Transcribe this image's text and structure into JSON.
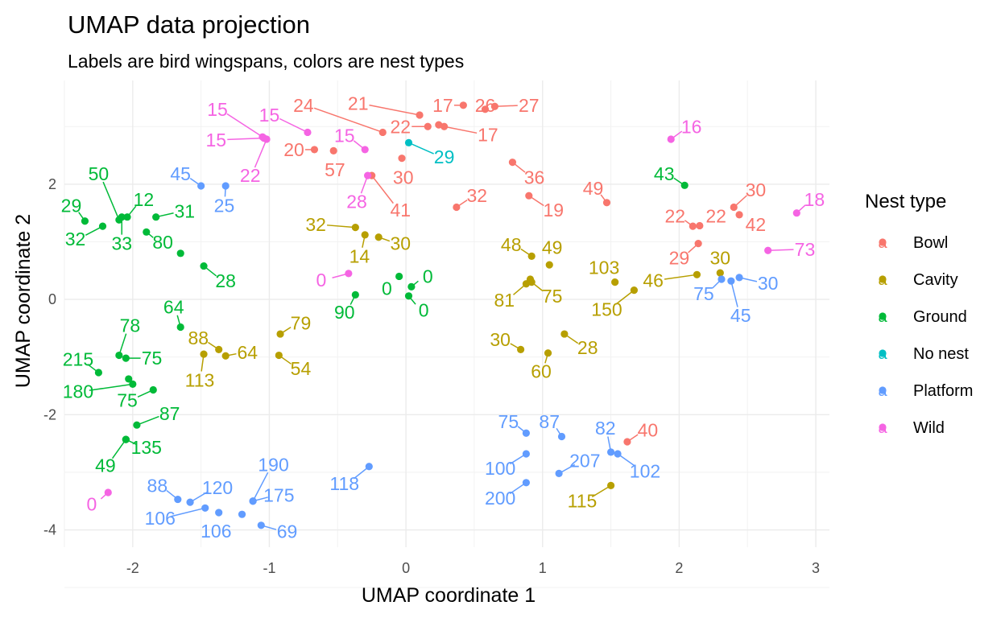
{
  "chart_data": {
    "type": "scatter",
    "title": "UMAP data projection",
    "subtitle": "Labels are bird wingspans, colors are nest types",
    "xlabel": "UMAP coordinate 1",
    "ylabel": "UMAP coordinate 2",
    "xlim": [
      -2.5,
      3.1
    ],
    "ylim": [
      -4.3,
      3.8
    ],
    "xticks": [
      -2,
      -1,
      0,
      1,
      2,
      3
    ],
    "xtick_labels": [
      "-2",
      "-1",
      "0",
      "1",
      "2",
      "3"
    ],
    "yticks": [
      -4,
      -2,
      0,
      2
    ],
    "ytick_labels": [
      "-4",
      "-2",
      "0",
      "2"
    ],
    "grid": true,
    "legend": {
      "title": "Nest type",
      "placement": "right",
      "key_glyph": "a",
      "entries": [
        {
          "name": "Bowl",
          "color": "#F8766D"
        },
        {
          "name": "Cavity",
          "color": "#B79F00"
        },
        {
          "name": "Ground",
          "color": "#00BA38"
        },
        {
          "name": "No nest",
          "color": "#00BFC4"
        },
        {
          "name": "Platform",
          "color": "#619CFF"
        },
        {
          "name": "Wild",
          "color": "#F564E3"
        }
      ]
    },
    "series": [
      {
        "name": "Bowl",
        "color": "#F8766D",
        "points": [
          {
            "x": 0.1,
            "y": 3.2,
            "label": "21",
            "lx": -0.35,
            "ly": 3.4
          },
          {
            "x": 0.42,
            "y": 3.37,
            "label": "17",
            "lx": 0.27,
            "ly": 3.37
          },
          {
            "x": 0.58,
            "y": 3.3,
            "label": "26",
            "lx": 0.58,
            "ly": 3.37
          },
          {
            "x": 0.65,
            "y": 3.35,
            "label": "27",
            "lx": 0.9,
            "ly": 3.37
          },
          {
            "x": -0.17,
            "y": 2.9,
            "label": "24",
            "lx": -0.75,
            "ly": 3.37
          },
          {
            "x": 0.16,
            "y": 3.0,
            "label": "22",
            "lx": -0.04,
            "ly": 3.0
          },
          {
            "x": 0.24,
            "y": 3.03,
            "label": "",
            "lx": null,
            "ly": null
          },
          {
            "x": 0.28,
            "y": 3.0,
            "label": "17",
            "lx": 0.6,
            "ly": 2.86
          },
          {
            "x": -0.67,
            "y": 2.6,
            "label": "20",
            "lx": -0.82,
            "ly": 2.6
          },
          {
            "x": -0.53,
            "y": 2.58,
            "label": "57",
            "lx": -0.52,
            "ly": 2.25
          },
          {
            "x": -0.03,
            "y": 2.45,
            "label": "30",
            "lx": -0.02,
            "ly": 2.12
          },
          {
            "x": -0.25,
            "y": 2.15,
            "label": "41",
            "lx": -0.04,
            "ly": 1.55
          },
          {
            "x": 0.78,
            "y": 2.38,
            "label": "36",
            "lx": 0.94,
            "ly": 2.12
          },
          {
            "x": 0.9,
            "y": 1.8,
            "label": "19",
            "lx": 1.08,
            "ly": 1.55
          },
          {
            "x": 0.37,
            "y": 1.6,
            "label": "32",
            "lx": 0.52,
            "ly": 1.8
          },
          {
            "x": 1.47,
            "y": 1.68,
            "label": "49",
            "lx": 1.37,
            "ly": 1.93
          },
          {
            "x": 2.1,
            "y": 1.27,
            "label": "22",
            "lx": 1.97,
            "ly": 1.45
          },
          {
            "x": 2.15,
            "y": 1.28,
            "label": "22",
            "lx": 2.27,
            "ly": 1.45
          },
          {
            "x": 2.4,
            "y": 1.6,
            "label": "30",
            "lx": 2.56,
            "ly": 1.9
          },
          {
            "x": 2.44,
            "y": 1.47,
            "label": "42",
            "lx": 2.56,
            "ly": 1.3
          },
          {
            "x": 2.14,
            "y": 0.97,
            "label": "29",
            "lx": 2.0,
            "ly": 0.72
          },
          {
            "x": 1.62,
            "y": -2.47,
            "label": "40",
            "lx": 1.77,
            "ly": -2.27
          }
        ]
      },
      {
        "name": "Cavity",
        "color": "#B79F00",
        "points": [
          {
            "x": -0.37,
            "y": 1.25,
            "label": "32",
            "lx": -0.66,
            "ly": 1.3
          },
          {
            "x": -0.3,
            "y": 1.12,
            "label": "14",
            "lx": -0.34,
            "ly": 0.75
          },
          {
            "x": -0.2,
            "y": 1.08,
            "label": "30",
            "lx": -0.04,
            "ly": 0.97
          },
          {
            "x": 0.92,
            "y": 0.75,
            "label": "48",
            "lx": 0.77,
            "ly": 0.95
          },
          {
            "x": 1.05,
            "y": 0.6,
            "label": "49",
            "lx": 1.07,
            "ly": 0.9
          },
          {
            "x": 0.91,
            "y": 0.35,
            "label": "",
            "lx": null,
            "ly": null
          },
          {
            "x": 0.88,
            "y": 0.27,
            "label": "81",
            "lx": 0.72,
            "ly": -0.01
          },
          {
            "x": 0.92,
            "y": 0.3,
            "label": "75",
            "lx": 1.07,
            "ly": 0.06
          },
          {
            "x": 1.53,
            "y": 0.3,
            "label": "103",
            "lx": 1.45,
            "ly": 0.55
          },
          {
            "x": 1.67,
            "y": 0.16,
            "label": "150",
            "lx": 1.47,
            "ly": -0.17
          },
          {
            "x": 2.13,
            "y": 0.43,
            "label": "46",
            "lx": 1.81,
            "ly": 0.33
          },
          {
            "x": 2.3,
            "y": 0.46,
            "label": "30",
            "lx": 2.3,
            "ly": 0.72
          },
          {
            "x": -0.92,
            "y": -0.6,
            "label": "79",
            "lx": -0.77,
            "ly": -0.41
          },
          {
            "x": -0.93,
            "y": -0.97,
            "label": "54",
            "lx": -0.77,
            "ly": -1.2
          },
          {
            "x": -1.37,
            "y": -0.87,
            "label": "88",
            "lx": -1.52,
            "ly": -0.67
          },
          {
            "x": -1.32,
            "y": -0.98,
            "label": "64",
            "lx": -1.16,
            "ly": -0.92
          },
          {
            "x": -1.48,
            "y": -0.95,
            "label": "113",
            "lx": -1.51,
            "ly": -1.4
          },
          {
            "x": 0.84,
            "y": -0.87,
            "label": "30",
            "lx": 0.69,
            "ly": -0.7
          },
          {
            "x": 1.04,
            "y": -0.93,
            "label": "60",
            "lx": 0.99,
            "ly": -1.25
          },
          {
            "x": 1.16,
            "y": -0.6,
            "label": "28",
            "lx": 1.33,
            "ly": -0.84
          },
          {
            "x": 1.5,
            "y": -3.23,
            "label": "115",
            "lx": 1.29,
            "ly": -3.5
          }
        ]
      },
      {
        "name": "Ground",
        "color": "#00BA38",
        "points": [
          {
            "x": -2.1,
            "y": 1.38,
            "label": "50",
            "lx": -2.25,
            "ly": 2.18
          },
          {
            "x": -2.04,
            "y": 1.43,
            "label": "12",
            "lx": -1.92,
            "ly": 1.73
          },
          {
            "x": -2.35,
            "y": 1.36,
            "label": "29",
            "lx": -2.45,
            "ly": 1.63
          },
          {
            "x": -2.22,
            "y": 1.27,
            "label": "32",
            "lx": -2.42,
            "ly": 1.05
          },
          {
            "x": -2.08,
            "y": 1.43,
            "label": "33",
            "lx": -2.08,
            "ly": 0.97
          },
          {
            "x": -1.83,
            "y": 1.43,
            "label": "31",
            "lx": -1.62,
            "ly": 1.53
          },
          {
            "x": -1.9,
            "y": 1.17,
            "label": "80",
            "lx": -1.78,
            "ly": 0.99
          },
          {
            "x": -1.65,
            "y": 0.8,
            "label": "",
            "lx": null,
            "ly": null
          },
          {
            "x": -1.48,
            "y": 0.58,
            "label": "28",
            "lx": -1.32,
            "ly": 0.32
          },
          {
            "x": 2.04,
            "y": 1.98,
            "label": "43",
            "lx": 1.89,
            "ly": 2.18
          },
          {
            "x": -0.05,
            "y": 0.4,
            "label": "0",
            "lx": -0.14,
            "ly": 0.19
          },
          {
            "x": 0.04,
            "y": 0.22,
            "label": "0",
            "lx": 0.16,
            "ly": 0.4
          },
          {
            "x": 0.02,
            "y": 0.06,
            "label": "0",
            "lx": 0.13,
            "ly": -0.19
          },
          {
            "x": -0.37,
            "y": 0.08,
            "label": "90",
            "lx": -0.45,
            "ly": -0.22
          },
          {
            "x": -1.65,
            "y": -0.48,
            "label": "64",
            "lx": -1.7,
            "ly": -0.13
          },
          {
            "x": -2.1,
            "y": -0.97,
            "label": "78",
            "lx": -2.02,
            "ly": -0.45
          },
          {
            "x": -2.05,
            "y": -1.02,
            "label": "75",
            "lx": -1.86,
            "ly": -1.02
          },
          {
            "x": -2.25,
            "y": -1.27,
            "label": "215",
            "lx": -2.4,
            "ly": -1.04
          },
          {
            "x": -2.03,
            "y": -1.38,
            "label": "",
            "lx": null,
            "ly": null
          },
          {
            "x": -2.0,
            "y": -1.47,
            "label": "180",
            "lx": -2.4,
            "ly": -1.6
          },
          {
            "x": -1.85,
            "y": -1.57,
            "label": "75",
            "lx": -2.04,
            "ly": -1.75
          },
          {
            "x": -1.97,
            "y": -2.18,
            "label": "87",
            "lx": -1.73,
            "ly": -1.98
          },
          {
            "x": -2.05,
            "y": -2.43,
            "label": "135",
            "lx": -1.9,
            "ly": -2.57
          },
          {
            "x": -2.05,
            "y": -2.43,
            "label": "49",
            "lx": -2.2,
            "ly": -2.88
          }
        ]
      },
      {
        "name": "No nest",
        "color": "#00BFC4",
        "points": [
          {
            "x": 0.02,
            "y": 2.72,
            "label": "29",
            "lx": 0.28,
            "ly": 2.47
          }
        ]
      },
      {
        "name": "Platform",
        "color": "#619CFF",
        "points": [
          {
            "x": -1.5,
            "y": 1.97,
            "label": "45",
            "lx": -1.65,
            "ly": 2.18
          },
          {
            "x": -1.32,
            "y": 1.97,
            "label": "25",
            "lx": -1.33,
            "ly": 1.63
          },
          {
            "x": 2.31,
            "y": 0.35,
            "label": "75",
            "lx": 2.18,
            "ly": 0.1
          },
          {
            "x": 2.38,
            "y": 0.32,
            "label": "45",
            "lx": 2.45,
            "ly": -0.28
          },
          {
            "x": 2.44,
            "y": 0.38,
            "label": "30",
            "lx": 2.65,
            "ly": 0.28
          },
          {
            "x": 0.88,
            "y": -2.32,
            "label": "75",
            "lx": 0.75,
            "ly": -2.12
          },
          {
            "x": 1.14,
            "y": -2.38,
            "label": "87",
            "lx": 1.05,
            "ly": -2.12
          },
          {
            "x": 0.88,
            "y": -2.68,
            "label": "100",
            "lx": 0.69,
            "ly": -2.93
          },
          {
            "x": 0.88,
            "y": -3.18,
            "label": "200",
            "lx": 0.69,
            "ly": -3.45
          },
          {
            "x": 1.12,
            "y": -3.02,
            "label": "207",
            "lx": 1.31,
            "ly": -2.8
          },
          {
            "x": 1.5,
            "y": -2.65,
            "label": "82",
            "lx": 1.46,
            "ly": -2.23
          },
          {
            "x": 1.55,
            "y": -2.68,
            "label": "102",
            "lx": 1.75,
            "ly": -2.98
          },
          {
            "x": -0.27,
            "y": -2.9,
            "label": "118",
            "lx": -0.45,
            "ly": -3.2
          },
          {
            "x": -1.67,
            "y": -3.47,
            "label": "88",
            "lx": -1.82,
            "ly": -3.23
          },
          {
            "x": -1.58,
            "y": -3.52,
            "label": "120",
            "lx": -1.38,
            "ly": -3.27
          },
          {
            "x": -1.47,
            "y": -3.62,
            "label": "106",
            "lx": -1.8,
            "ly": -3.8
          },
          {
            "x": -1.37,
            "y": -3.7,
            "label": "106",
            "lx": -1.39,
            "ly": -4.02
          },
          {
            "x": -1.2,
            "y": -3.73,
            "label": "",
            "lx": null,
            "ly": null
          },
          {
            "x": -1.12,
            "y": -3.5,
            "label": "190",
            "lx": -0.97,
            "ly": -2.87
          },
          {
            "x": -1.12,
            "y": -3.5,
            "label": "175",
            "lx": -0.93,
            "ly": -3.4
          },
          {
            "x": -1.06,
            "y": -3.92,
            "label": "69",
            "lx": -0.87,
            "ly": -4.03
          }
        ]
      },
      {
        "name": "Wild",
        "color": "#F564E3",
        "points": [
          {
            "x": -1.05,
            "y": 2.82,
            "label": "15",
            "lx": -1.38,
            "ly": 3.3
          },
          {
            "x": -0.72,
            "y": 2.9,
            "label": "15",
            "lx": -1.0,
            "ly": 3.2
          },
          {
            "x": -1.04,
            "y": 2.8,
            "label": "15",
            "lx": -1.39,
            "ly": 2.77
          },
          {
            "x": -1.02,
            "y": 2.78,
            "label": "22",
            "lx": -1.14,
            "ly": 2.15
          },
          {
            "x": -0.3,
            "y": 2.6,
            "label": "15",
            "lx": -0.45,
            "ly": 2.84
          },
          {
            "x": -0.28,
            "y": 2.15,
            "label": "28",
            "lx": -0.36,
            "ly": 1.7
          },
          {
            "x": 1.94,
            "y": 2.78,
            "label": "16",
            "lx": 2.09,
            "ly": 3.0
          },
          {
            "x": 2.86,
            "y": 1.5,
            "label": "18",
            "lx": 2.99,
            "ly": 1.73
          },
          {
            "x": 2.65,
            "y": 0.85,
            "label": "73",
            "lx": 2.92,
            "ly": 0.87
          },
          {
            "x": -0.42,
            "y": 0.45,
            "label": "0",
            "lx": -0.62,
            "ly": 0.34
          },
          {
            "x": -2.18,
            "y": -3.35,
            "label": "0",
            "lx": -2.3,
            "ly": -3.55
          }
        ]
      }
    ]
  }
}
